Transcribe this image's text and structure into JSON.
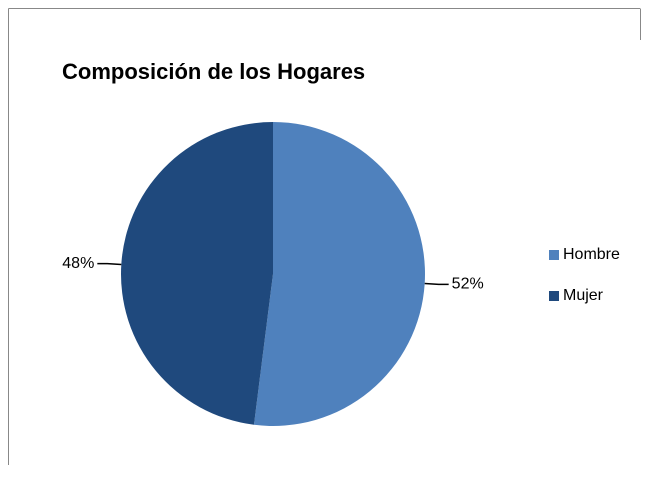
{
  "chart_data": {
    "type": "pie",
    "title": "Composición de los Hogares",
    "categories": [
      "Hombre",
      "Mujer"
    ],
    "values": [
      52,
      48
    ],
    "value_labels": [
      "52%",
      "48%"
    ],
    "colors": [
      "#4f81bd",
      "#1f497d"
    ],
    "legend": "right"
  }
}
